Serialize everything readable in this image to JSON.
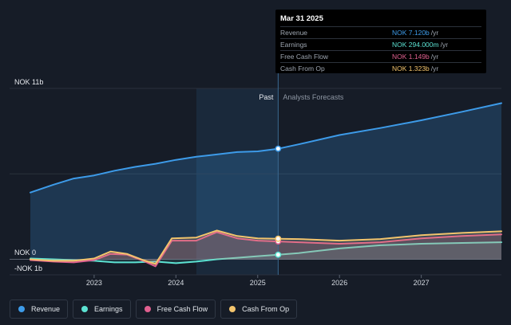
{
  "tooltip": {
    "date": "Mar 31 2025",
    "rows": [
      {
        "label": "Revenue",
        "value": "NOK 7.120b",
        "unit": "/yr",
        "color": "#3d9be9"
      },
      {
        "label": "Earnings",
        "value": "NOK 294.000m",
        "unit": "/yr",
        "color": "#5ce2d2"
      },
      {
        "label": "Free Cash Flow",
        "value": "NOK 1.149b",
        "unit": "/yr",
        "color": "#e0608f"
      },
      {
        "label": "Cash From Op",
        "value": "NOK 1.323b",
        "unit": "/yr",
        "color": "#f3c46d"
      }
    ]
  },
  "period": {
    "past_label": "Past",
    "forecast_label": "Analysts Forecasts"
  },
  "legend": [
    {
      "label": "Revenue",
      "color": "#3d9be9"
    },
    {
      "label": "Earnings",
      "color": "#5ce2d2"
    },
    {
      "label": "Free Cash Flow",
      "color": "#e0608f"
    },
    {
      "label": "Cash From Op",
      "color": "#f3c46d"
    }
  ],
  "chart_data": {
    "type": "area",
    "x_ticks": [
      "2023",
      "2024",
      "2025",
      "2026",
      "2027"
    ],
    "y_labels": [
      "NOK 11b",
      "NOK 0",
      "-NOK 1b"
    ],
    "ylim": [
      -1,
      11
    ],
    "xlim": [
      2022.22,
      2027.98
    ],
    "past_shade_start": 2024.25,
    "divider_x": 2025.25,
    "series": [
      {
        "name": "Revenue",
        "color": "#3d9be9",
        "points": [
          [
            2022.22,
            4.3
          ],
          [
            2022.5,
            4.8
          ],
          [
            2022.75,
            5.2
          ],
          [
            2023.0,
            5.4
          ],
          [
            2023.25,
            5.7
          ],
          [
            2023.5,
            5.95
          ],
          [
            2023.75,
            6.15
          ],
          [
            2024.0,
            6.4
          ],
          [
            2024.25,
            6.6
          ],
          [
            2024.5,
            6.75
          ],
          [
            2024.75,
            6.9
          ],
          [
            2025.0,
            6.95
          ],
          [
            2025.25,
            7.12
          ],
          [
            2025.5,
            7.4
          ],
          [
            2026.0,
            8.0
          ],
          [
            2026.5,
            8.45
          ],
          [
            2027.0,
            8.95
          ],
          [
            2027.5,
            9.5
          ],
          [
            2027.98,
            10.05
          ]
        ]
      },
      {
        "name": "Earnings",
        "color": "#5ce2d2",
        "points": [
          [
            2022.22,
            0.05
          ],
          [
            2022.5,
            0.0
          ],
          [
            2022.75,
            -0.05
          ],
          [
            2023.0,
            -0.1
          ],
          [
            2023.25,
            -0.2
          ],
          [
            2023.5,
            -0.2
          ],
          [
            2023.75,
            -0.15
          ],
          [
            2024.0,
            -0.25
          ],
          [
            2024.25,
            -0.15
          ],
          [
            2024.5,
            0.0
          ],
          [
            2024.75,
            0.1
          ],
          [
            2025.0,
            0.2
          ],
          [
            2025.25,
            0.294
          ],
          [
            2025.5,
            0.4
          ],
          [
            2026.0,
            0.7
          ],
          [
            2026.5,
            0.9
          ],
          [
            2027.0,
            1.0
          ],
          [
            2027.5,
            1.05
          ],
          [
            2027.98,
            1.1
          ]
        ]
      },
      {
        "name": "Free Cash Flow",
        "color": "#e0608f",
        "points": [
          [
            2022.22,
            -0.05
          ],
          [
            2022.5,
            -0.15
          ],
          [
            2022.75,
            -0.2
          ],
          [
            2023.0,
            -0.05
          ],
          [
            2023.2,
            0.35
          ],
          [
            2023.4,
            0.3
          ],
          [
            2023.6,
            -0.1
          ],
          [
            2023.75,
            -0.45
          ],
          [
            2023.95,
            1.2
          ],
          [
            2024.25,
            1.2
          ],
          [
            2024.5,
            1.75
          ],
          [
            2024.75,
            1.35
          ],
          [
            2025.0,
            1.2
          ],
          [
            2025.25,
            1.149
          ],
          [
            2025.5,
            1.1
          ],
          [
            2026.0,
            1.0
          ],
          [
            2026.5,
            1.1
          ],
          [
            2027.0,
            1.35
          ],
          [
            2027.5,
            1.5
          ],
          [
            2027.98,
            1.6
          ]
        ]
      },
      {
        "name": "Cash From Op",
        "color": "#f3c46d",
        "points": [
          [
            2022.22,
            0.0
          ],
          [
            2022.5,
            -0.1
          ],
          [
            2022.75,
            -0.1
          ],
          [
            2023.0,
            0.05
          ],
          [
            2023.2,
            0.5
          ],
          [
            2023.4,
            0.35
          ],
          [
            2023.6,
            -0.05
          ],
          [
            2023.75,
            -0.3
          ],
          [
            2023.95,
            1.35
          ],
          [
            2024.25,
            1.4
          ],
          [
            2024.5,
            1.85
          ],
          [
            2024.75,
            1.5
          ],
          [
            2025.0,
            1.35
          ],
          [
            2025.25,
            1.323
          ],
          [
            2025.5,
            1.3
          ],
          [
            2026.0,
            1.2
          ],
          [
            2026.5,
            1.3
          ],
          [
            2027.0,
            1.55
          ],
          [
            2027.5,
            1.7
          ],
          [
            2027.98,
            1.8
          ]
        ]
      }
    ]
  }
}
